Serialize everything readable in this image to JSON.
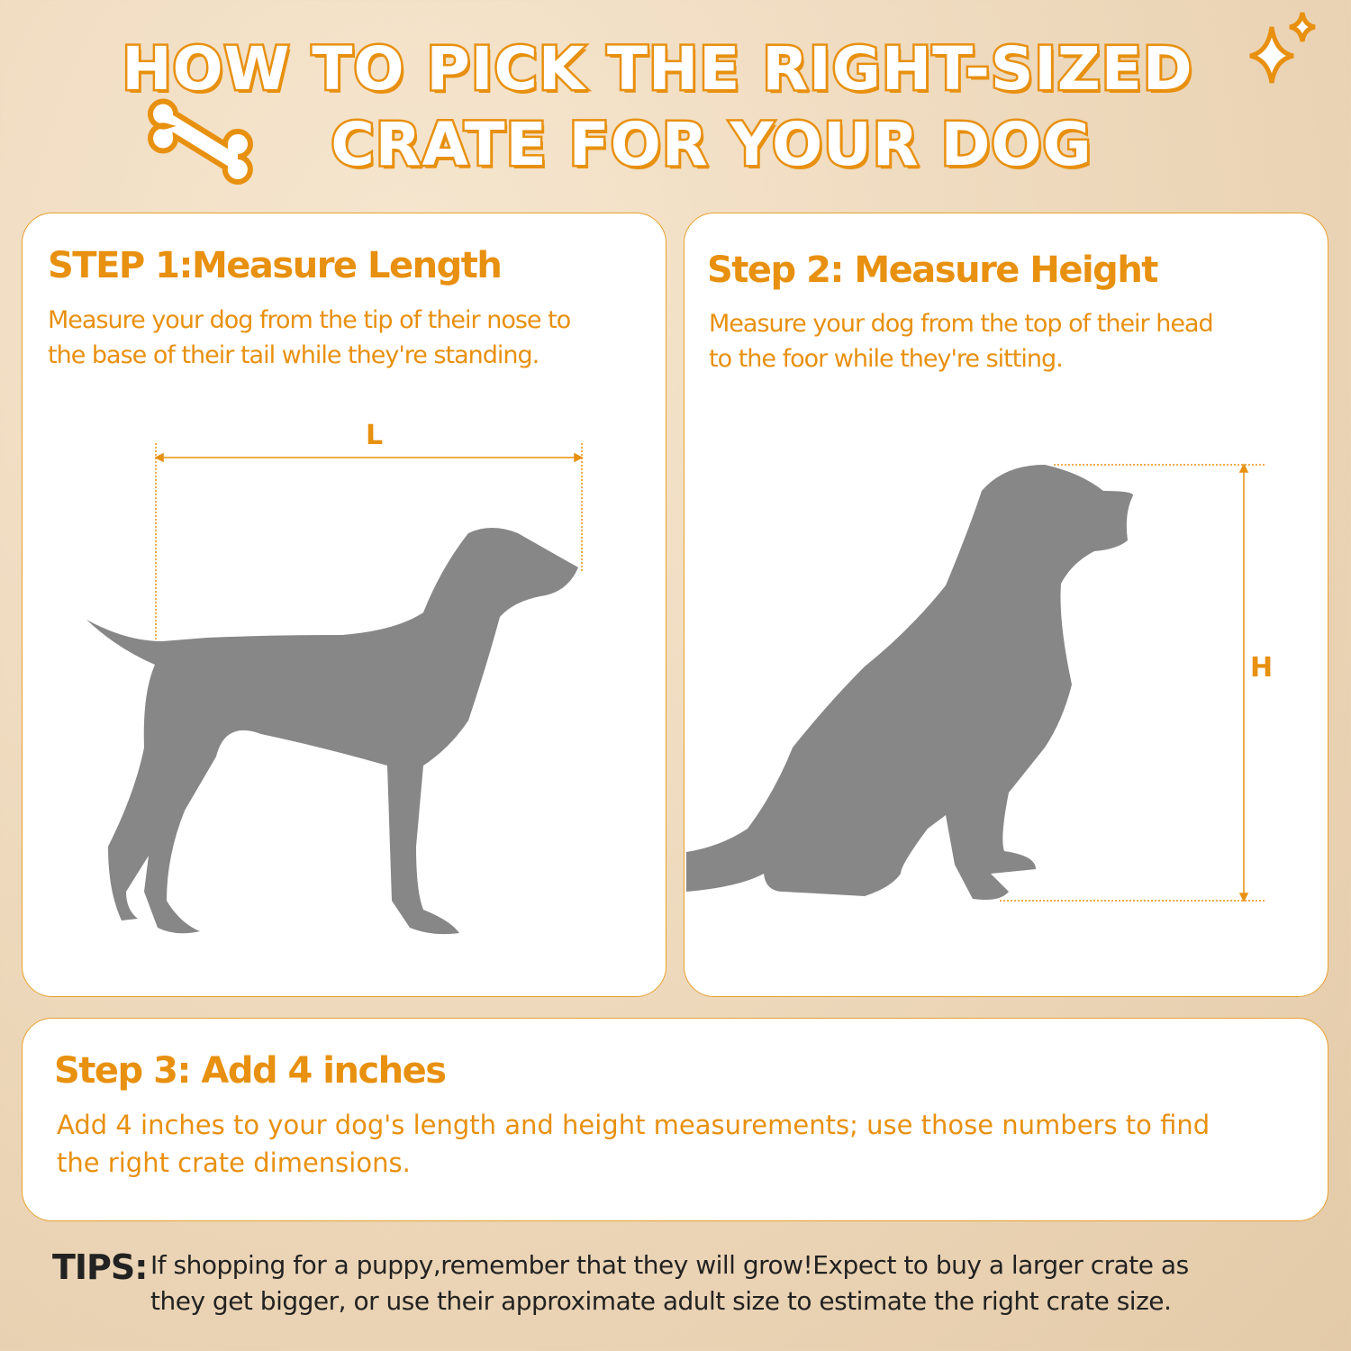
{
  "title": {
    "line1": "HOW TO PICK THE RIGHT-SIZED",
    "line2": "CRATE FOR YOUR DOG"
  },
  "icons": [
    "bone-icon",
    "sparkle-icon"
  ],
  "colors": {
    "accent": "#e8900f",
    "silhouette": "#878787",
    "background": "#ecd6b8"
  },
  "step1": {
    "heading": "STEP 1:Measure Length",
    "text_line1": "Measure your dog from the tip of their nose to",
    "text_line2": "the base of their tail while they're standing.",
    "dimension_label": "L"
  },
  "step2": {
    "heading": "Step 2: Measure Height",
    "text_line1": "Measure your dog from the top of their head",
    "text_line2": "to the foor while they're sitting.",
    "dimension_label": "H"
  },
  "step3": {
    "heading": "Step 3: Add 4 inches",
    "text_line1": "Add 4 inches to your dog's length and height measurements; use those numbers to find",
    "text_line2": "the right crate dimensions."
  },
  "tips": {
    "label": "TIPS:",
    "text_line1": "If shopping for a puppy,remember that they will grow!Expect to buy a larger crate as",
    "text_line2": "they get bigger, or use their approximate adult size to estimate the right crate size."
  }
}
